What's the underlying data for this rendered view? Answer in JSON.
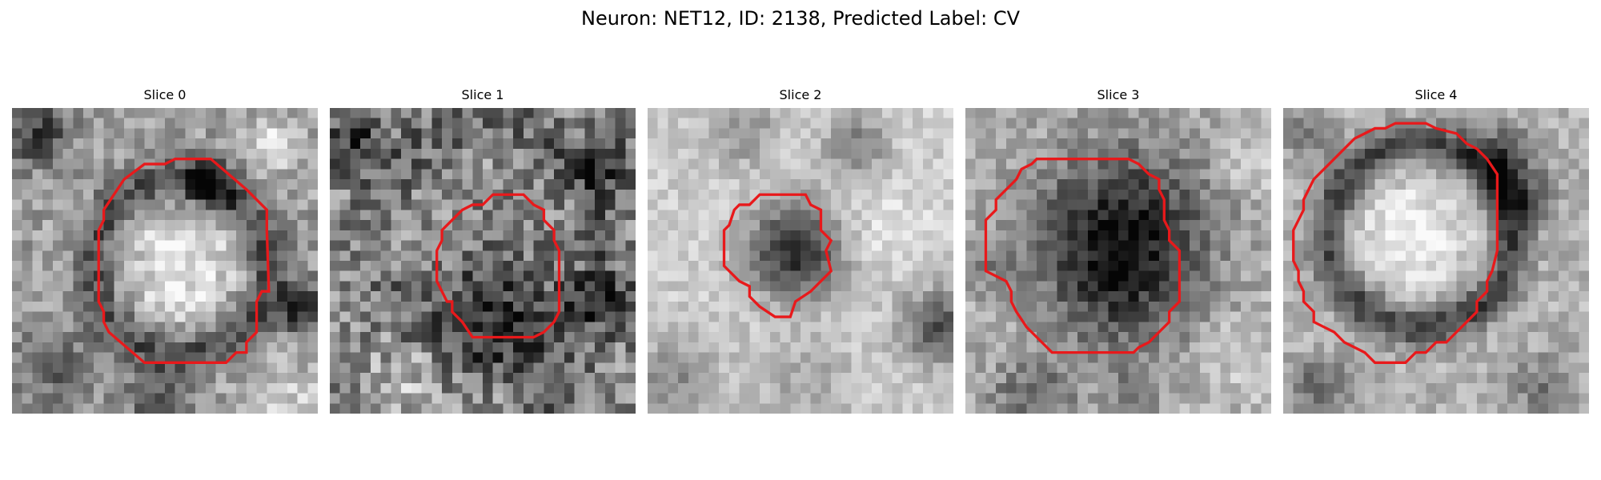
{
  "figure": {
    "title": "Neuron: NET12, ID: 2138, Predicted Label: CV"
  },
  "panels": [
    {
      "title": "Slice 0"
    },
    {
      "title": "Slice 1"
    },
    {
      "title": "Slice 2"
    },
    {
      "title": "Slice 3"
    },
    {
      "title": "Slice 4"
    }
  ],
  "colors": {
    "contour": "#e8191b",
    "background": "#ffffff",
    "colormap": "grayscale"
  }
}
